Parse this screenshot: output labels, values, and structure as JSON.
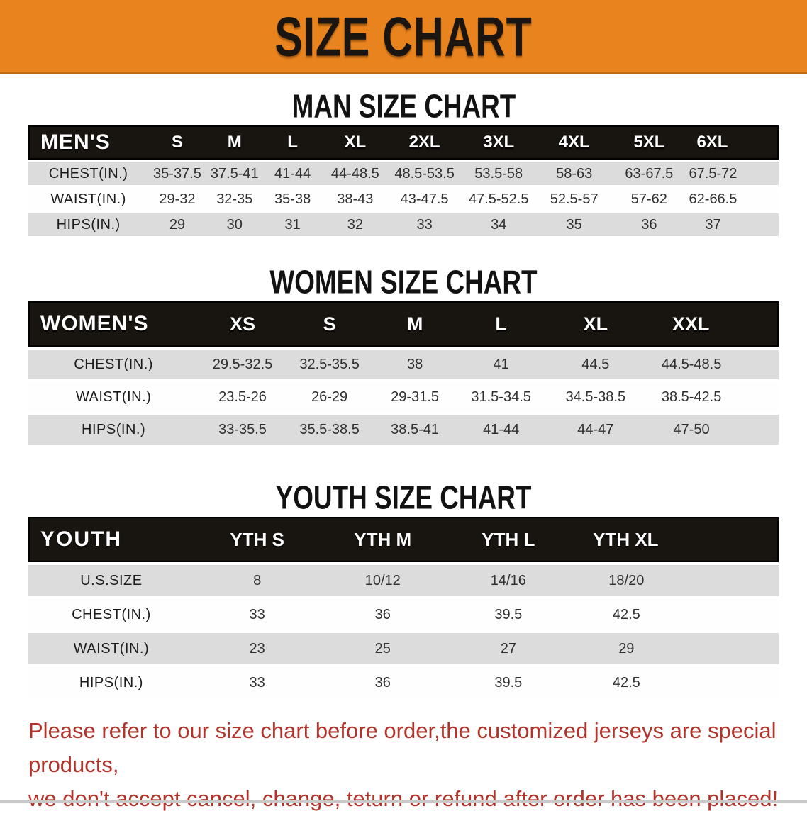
{
  "banner": {
    "title": "SIZE CHART",
    "bg_color": "#E8831D",
    "text_color": "#1A1511"
  },
  "sections": [
    {
      "heading": "MAN SIZE CHART",
      "table": {
        "label": "MEN'S",
        "columns": [
          "S",
          "M",
          "L",
          "XL",
          "2XL",
          "3XL",
          "4XL",
          "5XL",
          "6XL"
        ],
        "rows": [
          {
            "label": "CHEST(IN.)",
            "shade": true,
            "values": [
              "35-37.5",
              "37.5-41",
              "41-44",
              "44-48.5",
              "48.5-53.5",
              "53.5-58",
              "58-63",
              "63-67.5",
              "67.5-72"
            ]
          },
          {
            "label": "WAIST(IN.)",
            "shade": false,
            "values": [
              "29-32",
              "32-35",
              "35-38",
              "38-43",
              "43-47.5",
              "47.5-52.5",
              "52.5-57",
              "57-62",
              "62-66.5"
            ]
          },
          {
            "label": "HIPS(IN.)",
            "shade": true,
            "values": [
              "29",
              "30",
              "31",
              "32",
              "33",
              "34",
              "35",
              "36",
              "37"
            ]
          }
        ]
      }
    },
    {
      "heading": "WOMEN SIZE CHART",
      "table": {
        "label": "WOMEN'S",
        "columns": [
          "XS",
          "S",
          "M",
          "L",
          "XL",
          "XXL"
        ],
        "rows": [
          {
            "label": "CHEST(IN.)",
            "shade": true,
            "values": [
              "29.5-32.5",
              "32.5-35.5",
              "38",
              "41",
              "44.5",
              "44.5-48.5"
            ]
          },
          {
            "label": "WAIST(IN.)",
            "shade": false,
            "values": [
              "23.5-26",
              "26-29",
              "29-31.5",
              "31.5-34.5",
              "34.5-38.5",
              "38.5-42.5"
            ]
          },
          {
            "label": "HIPS(IN.)",
            "shade": true,
            "values": [
              "33-35.5",
              "35.5-38.5",
              "38.5-41",
              "41-44",
              "44-47",
              "47-50"
            ]
          }
        ]
      }
    },
    {
      "heading": "YOUTH SIZE CHART",
      "table": {
        "label": "YOUTH",
        "columns": [
          "YTH S",
          "YTH M",
          "YTH L",
          "YTH XL"
        ],
        "rows": [
          {
            "label": "U.S.SIZE",
            "shade": true,
            "values": [
              "8",
              "10/12",
              "14/16",
              "18/20"
            ]
          },
          {
            "label": "CHEST(IN.)",
            "shade": false,
            "values": [
              "33",
              "36",
              "39.5",
              "42.5"
            ]
          },
          {
            "label": "WAIST(IN.)",
            "shade": true,
            "values": [
              "23",
              "25",
              "27",
              "29"
            ]
          },
          {
            "label": "HIPS(IN.)",
            "shade": false,
            "values": [
              "33",
              "36",
              "39.5",
              "42.5"
            ]
          }
        ]
      }
    }
  ],
  "footer": {
    "line1": "Please refer to our size chart before order,the customized jerseys are special products,",
    "line2": "we don't accept cancel, change, teturn or refund after order has been placed!",
    "text_color": "#B2332C"
  },
  "colors": {
    "table_header_bar": "#18140F",
    "shaded_row": "#DCDCDC",
    "row_text": "#2F2F2F"
  }
}
